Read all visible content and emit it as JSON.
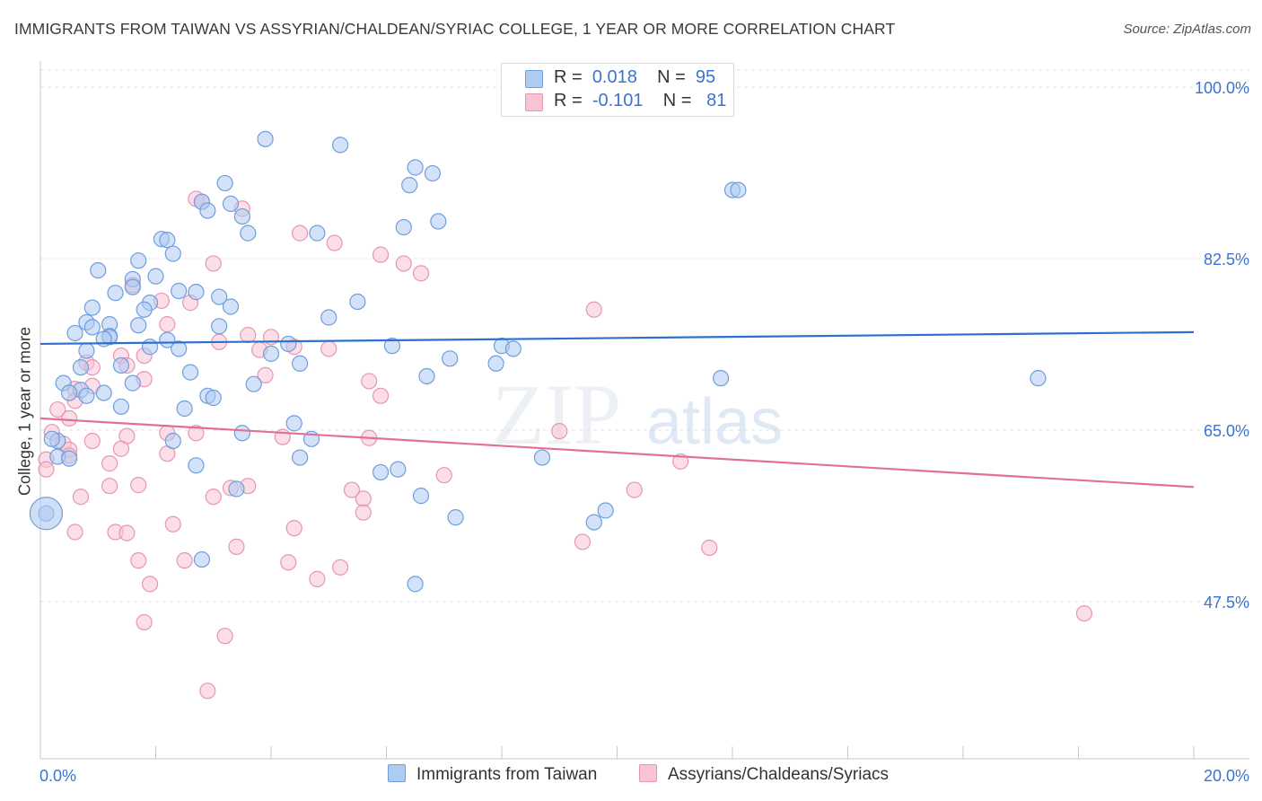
{
  "title": "IMMIGRANTS FROM TAIWAN VS ASSYRIAN/CHALDEAN/SYRIAC COLLEGE, 1 YEAR OR MORE CORRELATION CHART",
  "source": "Source: ZipAtlas.com",
  "watermark": {
    "zip": "ZIP",
    "atlas": "atlas"
  },
  "legend": {
    "r_label": "R =",
    "n_label": "N =",
    "series1": {
      "r": "0.018",
      "n": "95"
    },
    "series2": {
      "r": "-0.101",
      "n": "81"
    }
  },
  "bottom_legend": {
    "series1": "Immigrants from Taiwan",
    "series2": "Assyrians/Chaldeans/Syriacs"
  },
  "chart_data": {
    "type": "scatter",
    "ylabel": "College, 1 year or more",
    "xlim": [
      0,
      20
    ],
    "ylim": [
      30,
      100
    ],
    "x_tick_labels": [
      "0.0%",
      "20.0%"
    ],
    "y_ticks": [
      47.5,
      65.0,
      82.5,
      100.0
    ],
    "y_tick_labels": [
      "47.5%",
      "65.0%",
      "82.5%",
      "100.0%"
    ],
    "grid": true,
    "legend_position": "top-center",
    "colors": {
      "series1_fill": "#aecbf2",
      "series1_stroke": "#6f9edc",
      "series1_line": "#2f6fcf",
      "series2_fill": "#f8c3d4",
      "series2_stroke": "#e796b2",
      "series2_line": "#e0709a",
      "tick": "#3a73d0"
    },
    "series": [
      {
        "name": "Immigrants from Taiwan",
        "trend": {
          "x": [
            0,
            20
          ],
          "y": [
            73.8,
            75.0
          ]
        },
        "points": [
          [
            3.9,
            94.7
          ],
          [
            5.2,
            94.1
          ],
          [
            6.5,
            91.8
          ],
          [
            6.8,
            91.2
          ],
          [
            6.4,
            90.0
          ],
          [
            3.2,
            90.2
          ],
          [
            12.0,
            89.5
          ],
          [
            12.1,
            89.5
          ],
          [
            2.8,
            88.3
          ],
          [
            3.3,
            88.1
          ],
          [
            2.9,
            87.4
          ],
          [
            3.5,
            86.8
          ],
          [
            6.9,
            86.3
          ],
          [
            6.3,
            85.7
          ],
          [
            3.6,
            85.1
          ],
          [
            4.8,
            85.1
          ],
          [
            2.1,
            84.5
          ],
          [
            2.2,
            84.4
          ],
          [
            2.3,
            83.0
          ],
          [
            1.7,
            82.3
          ],
          [
            1.0,
            81.3
          ],
          [
            2.0,
            80.7
          ],
          [
            1.6,
            80.4
          ],
          [
            1.6,
            79.6
          ],
          [
            2.4,
            79.2
          ],
          [
            2.7,
            79.1
          ],
          [
            1.3,
            79.0
          ],
          [
            3.1,
            78.6
          ],
          [
            5.5,
            78.1
          ],
          [
            1.9,
            78.0
          ],
          [
            3.3,
            77.6
          ],
          [
            1.8,
            77.3
          ],
          [
            0.9,
            77.5
          ],
          [
            5.0,
            76.5
          ],
          [
            0.8,
            76.0
          ],
          [
            1.2,
            75.8
          ],
          [
            0.9,
            75.5
          ],
          [
            3.1,
            75.6
          ],
          [
            1.7,
            75.7
          ],
          [
            0.6,
            74.9
          ],
          [
            1.2,
            74.6
          ],
          [
            1.2,
            74.5
          ],
          [
            1.1,
            74.3
          ],
          [
            2.2,
            74.2
          ],
          [
            4.3,
            73.8
          ],
          [
            6.1,
            73.6
          ],
          [
            1.9,
            73.5
          ],
          [
            2.4,
            73.3
          ],
          [
            8.0,
            73.6
          ],
          [
            8.2,
            73.3
          ],
          [
            0.8,
            73.1
          ],
          [
            4.0,
            72.8
          ],
          [
            7.1,
            72.3
          ],
          [
            4.5,
            71.8
          ],
          [
            7.9,
            71.8
          ],
          [
            1.4,
            71.6
          ],
          [
            0.7,
            71.4
          ],
          [
            2.6,
            70.9
          ],
          [
            6.7,
            70.5
          ],
          [
            11.8,
            70.3
          ],
          [
            17.3,
            70.3
          ],
          [
            1.6,
            69.8
          ],
          [
            3.7,
            69.7
          ],
          [
            0.4,
            69.8
          ],
          [
            0.7,
            69.1
          ],
          [
            0.5,
            68.8
          ],
          [
            1.1,
            68.8
          ],
          [
            0.8,
            68.5
          ],
          [
            2.9,
            68.5
          ],
          [
            3.0,
            68.3
          ],
          [
            1.4,
            67.4
          ],
          [
            2.5,
            67.2
          ],
          [
            4.4,
            65.7
          ],
          [
            3.5,
            64.7
          ],
          [
            4.7,
            64.1
          ],
          [
            2.3,
            63.9
          ],
          [
            0.3,
            63.9
          ],
          [
            0.2,
            64.1
          ],
          [
            0.3,
            62.3
          ],
          [
            0.5,
            62.1
          ],
          [
            4.5,
            62.2
          ],
          [
            8.7,
            62.2
          ],
          [
            2.7,
            61.4
          ],
          [
            6.2,
            61.0
          ],
          [
            5.9,
            60.7
          ],
          [
            3.4,
            59.0
          ],
          [
            6.6,
            58.3
          ],
          [
            9.8,
            56.8
          ],
          [
            7.2,
            56.1
          ],
          [
            9.6,
            55.6
          ],
          [
            0.1,
            56.5
          ],
          [
            2.8,
            51.8
          ],
          [
            6.5,
            49.3
          ]
        ]
      },
      {
        "name": "Assyrians/Chaldeans/Syriacs",
        "trend": {
          "x": [
            0,
            20
          ],
          "y": [
            66.2,
            59.2
          ]
        },
        "points": [
          [
            2.7,
            88.6
          ],
          [
            2.8,
            88.3
          ],
          [
            3.5,
            87.6
          ],
          [
            4.5,
            85.1
          ],
          [
            5.1,
            84.1
          ],
          [
            5.9,
            82.9
          ],
          [
            3.0,
            82.0
          ],
          [
            6.3,
            82.0
          ],
          [
            6.6,
            81.0
          ],
          [
            1.6,
            79.8
          ],
          [
            2.1,
            78.2
          ],
          [
            2.6,
            78.0
          ],
          [
            9.6,
            77.3
          ],
          [
            2.2,
            75.8
          ],
          [
            3.6,
            74.7
          ],
          [
            4.0,
            74.5
          ],
          [
            3.1,
            74.0
          ],
          [
            3.8,
            73.2
          ],
          [
            4.4,
            73.5
          ],
          [
            5.0,
            73.3
          ],
          [
            1.4,
            72.6
          ],
          [
            1.8,
            72.6
          ],
          [
            0.8,
            71.9
          ],
          [
            0.9,
            71.4
          ],
          [
            1.5,
            71.6
          ],
          [
            3.9,
            70.6
          ],
          [
            1.8,
            70.2
          ],
          [
            5.7,
            70.0
          ],
          [
            0.9,
            69.5
          ],
          [
            0.6,
            69.2
          ],
          [
            5.9,
            68.5
          ],
          [
            0.6,
            68.0
          ],
          [
            0.3,
            67.1
          ],
          [
            0.5,
            66.2
          ],
          [
            0.2,
            64.8
          ],
          [
            9.0,
            64.9
          ],
          [
            2.2,
            64.7
          ],
          [
            2.7,
            64.7
          ],
          [
            1.5,
            64.4
          ],
          [
            4.2,
            64.3
          ],
          [
            5.7,
            64.2
          ],
          [
            0.9,
            63.9
          ],
          [
            0.4,
            63.6
          ],
          [
            0.5,
            63.0
          ],
          [
            1.4,
            63.1
          ],
          [
            2.2,
            62.6
          ],
          [
            0.1,
            62.0
          ],
          [
            0.5,
            62.4
          ],
          [
            11.1,
            61.8
          ],
          [
            1.2,
            61.6
          ],
          [
            0.1,
            61.0
          ],
          [
            7.0,
            60.4
          ],
          [
            1.7,
            59.4
          ],
          [
            1.2,
            59.3
          ],
          [
            3.3,
            59.1
          ],
          [
            3.6,
            59.3
          ],
          [
            5.4,
            58.9
          ],
          [
            10.3,
            58.9
          ],
          [
            0.7,
            58.2
          ],
          [
            3.0,
            58.2
          ],
          [
            5.6,
            58.0
          ],
          [
            5.6,
            56.6
          ],
          [
            2.3,
            55.4
          ],
          [
            4.4,
            55.0
          ],
          [
            0.6,
            54.6
          ],
          [
            1.3,
            54.6
          ],
          [
            1.5,
            54.5
          ],
          [
            9.4,
            53.6
          ],
          [
            3.4,
            53.1
          ],
          [
            11.6,
            53.0
          ],
          [
            1.7,
            51.7
          ],
          [
            2.5,
            51.7
          ],
          [
            4.3,
            51.5
          ],
          [
            5.2,
            51.0
          ],
          [
            4.8,
            49.8
          ],
          [
            1.9,
            49.3
          ],
          [
            18.1,
            46.3
          ],
          [
            1.8,
            45.4
          ],
          [
            3.2,
            44.0
          ],
          [
            2.9,
            38.4
          ]
        ]
      }
    ]
  }
}
